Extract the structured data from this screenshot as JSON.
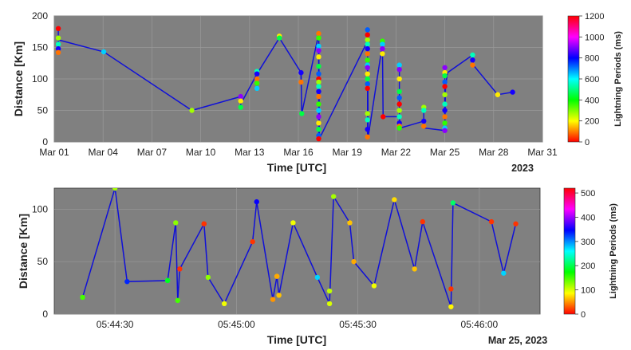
{
  "chart_data": [
    {
      "type": "scatter",
      "title": "",
      "xlabel": "Time [UTC]",
      "ylabel": "Distance [Km]",
      "x_unit": "days",
      "xlim": [
        "2023-03-01",
        "2023-03-31"
      ],
      "ylim": [
        0,
        200
      ],
      "x_ticks": [
        "2023-03-01",
        "2023-03-04",
        "2023-03-07",
        "2023-03-10",
        "2023-03-13",
        "2023-03-16",
        "2023-03-19",
        "2023-03-22",
        "2023-03-25",
        "2023-03-28",
        "2023-03-31"
      ],
      "x_tick_labels": [
        "Mar 01",
        "Mar 04",
        "Mar 07",
        "Mar 10",
        "Mar 13",
        "Mar 16",
        "Mar 19",
        "Mar 22",
        "Mar 25",
        "Mar 28",
        "Mar 31"
      ],
      "y_ticks": [
        0,
        50,
        100,
        150,
        200
      ],
      "corner_label": "2023",
      "colorbar": {
        "label": "Lightning Periods (ms)",
        "range": [
          0,
          1200
        ],
        "ticks": [
          0,
          200,
          400,
          600,
          800,
          1000,
          1200
        ],
        "colormap": "hsv"
      },
      "line_color": "#1010d8",
      "grid": true,
      "background": "#808080",
      "series": [
        {
          "x": [
            "2023-03-01 06:00",
            "2023-03-04 01:00",
            "2023-03-09 11:00",
            "2023-03-12 11:00",
            "2023-03-12 12:00",
            "2023-03-13 11:00",
            "2023-03-14 20:00",
            "2023-03-16 04:00",
            "2023-03-16 05:00",
            "2023-03-17 06:00",
            "2023-03-17 07:00",
            "2023-03-20 06:00",
            "2023-03-20 07:00",
            "2023-03-21 04:00",
            "2023-03-21 05:00",
            "2023-03-22 05:00",
            "2023-03-22 06:00",
            "2023-03-23 17:00",
            "2023-03-23 18:00",
            "2023-03-25 00:00",
            "2023-03-25 01:00",
            "2023-03-25 04:00",
            "2023-03-26 17:00",
            "2023-03-26 18:00",
            "2023-03-28 06:00",
            "2023-03-29 04:00"
          ],
          "y": [
            162,
            143,
            50,
            72,
            62,
            108,
            165,
            110,
            45,
            172,
            5,
            160,
            8,
            155,
            40,
            40,
            22,
            33,
            22,
            18,
            88,
            110,
            138,
            122,
            75,
            79
          ]
        }
      ],
      "markers": [
        {
          "x": "2023-03-01 06:00",
          "values": [
            180,
            165,
            155,
            148,
            142
          ]
        },
        {
          "x": "2023-03-04 01:00",
          "values": [
            143
          ]
        },
        {
          "x": "2023-03-09 11:00",
          "values": [
            50
          ]
        },
        {
          "x": "2023-03-12 11:00",
          "values": [
            72,
            65,
            55
          ]
        },
        {
          "x": "2023-03-13 11:00",
          "values": [
            112,
            108,
            100,
            93,
            85
          ]
        },
        {
          "x": "2023-03-14 20:00",
          "values": [
            168,
            165
          ]
        },
        {
          "x": "2023-03-16 04:00",
          "values": [
            110,
            95
          ]
        },
        {
          "x": "2023-03-16 05:00",
          "values": [
            45
          ]
        },
        {
          "x": "2023-03-17 06:00",
          "values": [
            172,
            165,
            152,
            145,
            135,
            120,
            108,
            100,
            95,
            88,
            80,
            72,
            60,
            50,
            40,
            30,
            20,
            10,
            5
          ]
        },
        {
          "x": "2023-03-20 06:00",
          "values": [
            178,
            170,
            162,
            155,
            148,
            140,
            130,
            122,
            118,
            108,
            100,
            92,
            85,
            45,
            35,
            20,
            8
          ]
        },
        {
          "x": "2023-03-21 04:00",
          "values": [
            160,
            155,
            148,
            140
          ]
        },
        {
          "x": "2023-03-21 05:00",
          "values": [
            40
          ]
        },
        {
          "x": "2023-03-22 05:00",
          "values": [
            122,
            115,
            100,
            80,
            70,
            60,
            50,
            40,
            30,
            25,
            22
          ]
        },
        {
          "x": "2023-03-23 17:00",
          "values": [
            55,
            50,
            33,
            25
          ]
        },
        {
          "x": "2023-03-25 00:00",
          "values": [
            118,
            110,
            105,
            95,
            88,
            75,
            60,
            50,
            40,
            30,
            22,
            18
          ]
        },
        {
          "x": "2023-03-26 17:00",
          "values": [
            138,
            130,
            122
          ]
        },
        {
          "x": "2023-03-28 06:00",
          "values": [
            75
          ]
        },
        {
          "x": "2023-03-29 04:00",
          "values": [
            79
          ]
        }
      ]
    },
    {
      "type": "scatter",
      "title": "",
      "xlabel": "Time [UTC]",
      "ylabel": "Distance [Km]",
      "x_unit": "seconds",
      "xlim": [
        "05:44:15",
        "05:46:15"
      ],
      "ylim": [
        0,
        120
      ],
      "x_ticks": [
        "05:44:30",
        "05:45:00",
        "05:45:30",
        "05:46:00"
      ],
      "y_ticks": [
        0,
        50,
        100
      ],
      "corner_label": "Mar 25, 2023",
      "colorbar": {
        "label": "Lightning Periods (ms)",
        "range": [
          0,
          520
        ],
        "ticks": [
          0,
          100,
          200,
          300,
          400,
          500
        ],
        "colormap": "hsv"
      },
      "line_color": "#1010d8",
      "grid": true,
      "background": "#808080",
      "series": [
        {
          "x": [
            "05:44:22",
            "05:44:30",
            "05:44:33",
            "05:44:43",
            "05:44:45",
            "05:44:45.5",
            "05:44:46",
            "05:44:52",
            "05:44:53",
            "05:44:57",
            "05:45:04",
            "05:45:05",
            "05:45:09",
            "05:45:10",
            "05:45:10.5",
            "05:45:14",
            "05:45:20",
            "05:45:23",
            "05:45:24",
            "05:45:28",
            "05:45:29",
            "05:45:34",
            "05:45:39",
            "05:45:44",
            "05:45:46",
            "05:45:53",
            "05:45:53.5",
            "05:46:03",
            "05:46:06",
            "05:46:09"
          ],
          "y": [
            16,
            120,
            31,
            32,
            87,
            13,
            43,
            86,
            35,
            10,
            69,
            107,
            14,
            36,
            18,
            87,
            35,
            10,
            112,
            87,
            50,
            27,
            109,
            43,
            88,
            7,
            106,
            88,
            39,
            86
          ],
          "periods": [
            180,
            140,
            400,
            250,
            150,
            180,
            480,
            20,
            150,
            110,
            20,
            420,
            60,
            80,
            80,
            110,
            330,
            120,
            140,
            80,
            70,
            110,
            90,
            80,
            20,
            100,
            250,
            20,
            330,
            20
          ]
        }
      ],
      "extra_markers": [
        {
          "x": "05:44:43",
          "y": 32,
          "period": 220
        },
        {
          "x": "05:44:46",
          "y": 43,
          "period": 20
        },
        {
          "x": "05:44:52",
          "y": 86,
          "period": 20
        },
        {
          "x": "05:45:10",
          "y": 36,
          "period": 70
        },
        {
          "x": "05:45:23",
          "y": 22,
          "period": 130
        },
        {
          "x": "05:45:53",
          "y": 24,
          "period": 20
        }
      ]
    }
  ]
}
